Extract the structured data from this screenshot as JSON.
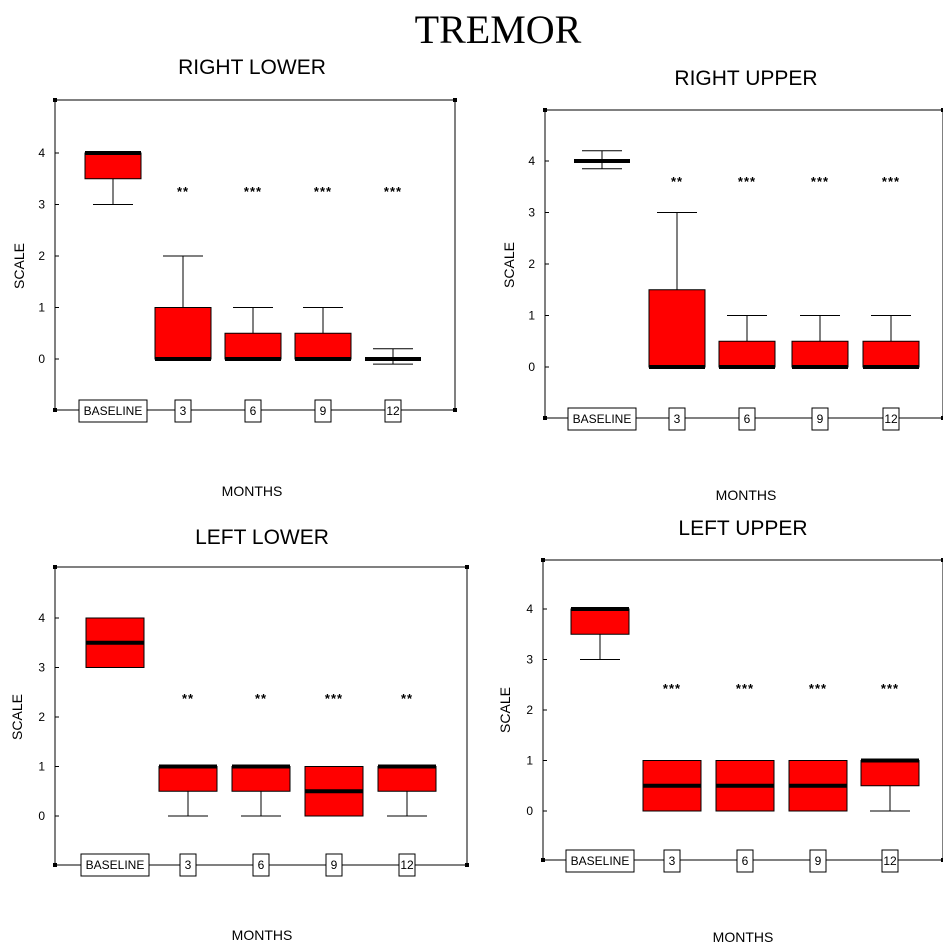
{
  "title": "TREMOR",
  "colors": {
    "box_fill": "#ff0000",
    "median": "#000000",
    "axis": "#000000"
  },
  "chart_data": [
    {
      "type": "box",
      "title": "RIGHT LOWER",
      "xlabel": "MONTHS",
      "ylabel": "SCALE",
      "categories": [
        "BASELINE",
        "3",
        "6",
        "9",
        "12"
      ],
      "yticks": [
        "0",
        "1",
        "2",
        "3",
        "4"
      ],
      "ylim": [
        -1,
        5
      ],
      "boxes": [
        {
          "min": 3,
          "q1": 3.5,
          "median": 4,
          "q3": 4,
          "max": 4
        },
        {
          "min": 0,
          "q1": 0,
          "median": 0,
          "q3": 1,
          "max": 2
        },
        {
          "min": 0,
          "q1": 0,
          "median": 0,
          "q3": 0.5,
          "max": 1
        },
        {
          "min": 0,
          "q1": 0,
          "median": 0,
          "q3": 0.5,
          "max": 1
        },
        {
          "min": -0.1,
          "q1": 0,
          "median": 0,
          "q3": 0,
          "max": 0.2
        }
      ],
      "significance": [
        "",
        "**",
        "***",
        "***",
        "***"
      ]
    },
    {
      "type": "box",
      "title": "RIGHT UPPER",
      "xlabel": "MONTHS",
      "ylabel": "SCALE",
      "categories": [
        "BASELINE",
        "3",
        "6",
        "9",
        "12"
      ],
      "yticks": [
        "0",
        "1",
        "2",
        "3",
        "4"
      ],
      "ylim": [
        -1,
        5
      ],
      "boxes": [
        {
          "min": 3.85,
          "q1": 4,
          "median": 4,
          "q3": 4,
          "max": 4.2
        },
        {
          "min": 0,
          "q1": 0,
          "median": 0,
          "q3": 1.5,
          "max": 3
        },
        {
          "min": 0,
          "q1": 0,
          "median": 0,
          "q3": 0.5,
          "max": 1
        },
        {
          "min": 0,
          "q1": 0,
          "median": 0,
          "q3": 0.5,
          "max": 1
        },
        {
          "min": 0,
          "q1": 0,
          "median": 0,
          "q3": 0.5,
          "max": 1
        }
      ],
      "significance": [
        "",
        "**",
        "***",
        "***",
        "***"
      ]
    },
    {
      "type": "box",
      "title": "LEFT LOWER",
      "xlabel": "MONTHS",
      "ylabel": "SCALE",
      "categories": [
        "BASELINE",
        "3",
        "6",
        "9",
        "12"
      ],
      "yticks": [
        "0",
        "1",
        "2",
        "3",
        "4"
      ],
      "ylim": [
        -1,
        5
      ],
      "boxes": [
        {
          "min": 3,
          "q1": 3,
          "median": 3.5,
          "q3": 4,
          "max": 4
        },
        {
          "min": 0,
          "q1": 0.5,
          "median": 1,
          "q3": 1,
          "max": 1
        },
        {
          "min": 0,
          "q1": 0.5,
          "median": 1,
          "q3": 1,
          "max": 1
        },
        {
          "min": 0,
          "q1": 0,
          "median": 0.5,
          "q3": 1,
          "max": 1
        },
        {
          "min": 0,
          "q1": 0.5,
          "median": 1,
          "q3": 1,
          "max": 1
        }
      ],
      "significance": [
        "",
        "**",
        "**",
        "***",
        "**"
      ]
    },
    {
      "type": "box",
      "title": "LEFT UPPER",
      "xlabel": "MONTHS",
      "ylabel": "SCALE",
      "categories": [
        "BASELINE",
        "3",
        "6",
        "9",
        "12"
      ],
      "yticks": [
        "0",
        "1",
        "2",
        "3",
        "4"
      ],
      "ylim": [
        -1,
        5
      ],
      "boxes": [
        {
          "min": 3,
          "q1": 3.5,
          "median": 4,
          "q3": 4,
          "max": 4
        },
        {
          "min": 0,
          "q1": 0,
          "median": 0.5,
          "q3": 1,
          "max": 1
        },
        {
          "min": 0,
          "q1": 0,
          "median": 0.5,
          "q3": 1,
          "max": 1
        },
        {
          "min": 0,
          "q1": 0,
          "median": 0.5,
          "q3": 1,
          "max": 1
        },
        {
          "min": 0,
          "q1": 0.5,
          "median": 1,
          "q3": 1,
          "max": 1
        }
      ],
      "significance": [
        "",
        "***",
        "***",
        "***",
        "***"
      ]
    }
  ]
}
